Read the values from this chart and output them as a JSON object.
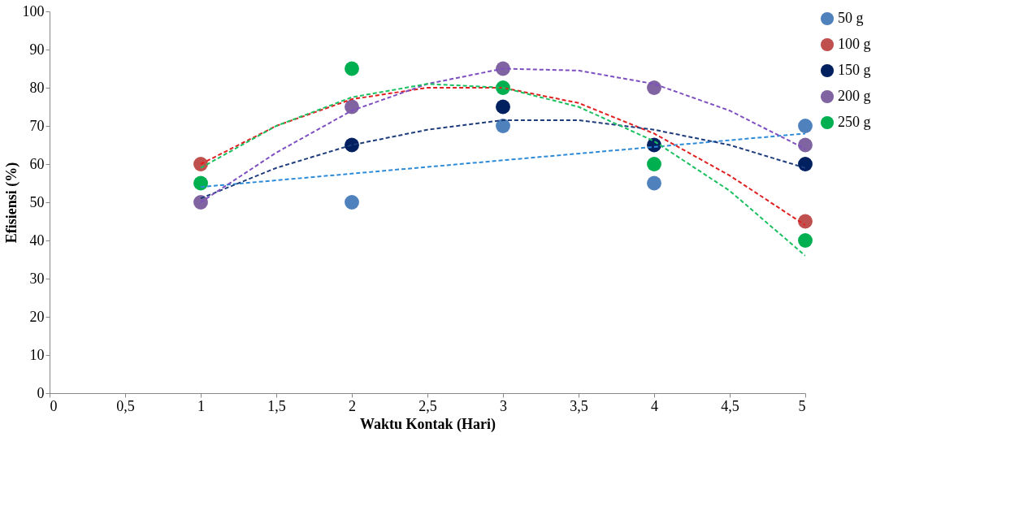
{
  "chart_data": {
    "type": "scatter",
    "xlabel": "Waktu Kontak (Hari)",
    "ylabel": "Efisiensi (%)",
    "marker": "circle",
    "legend": "right",
    "grid": false,
    "xlim": [
      0,
      5
    ],
    "xticks": [
      0,
      {
        "value": 0.5,
        "label": "0,5"
      },
      1,
      {
        "value": 1.5,
        "label": "1,5"
      },
      2,
      {
        "value": 2.5,
        "label": "2,5"
      },
      3,
      {
        "value": 3.5,
        "label": "3,5"
      },
      4,
      {
        "value": 4.5,
        "label": "4,5"
      },
      5
    ],
    "ylim": [
      0,
      100
    ],
    "yticks": [
      0,
      10,
      20,
      30,
      40,
      50,
      60,
      70,
      80,
      90,
      100
    ],
    "x": [
      1,
      2,
      3,
      4,
      5
    ],
    "series": [
      {
        "type": "line",
        "marker": "none",
        "line_style": "dashed",
        "color": "#2e8bd8",
        "x": [
          1,
          5
        ],
        "values": [
          54,
          68
        ]
      },
      {
        "type": "line",
        "marker": "none",
        "line_style": "dashed",
        "color": "#e02020",
        "x": [
          1,
          1.5,
          2,
          2.5,
          3,
          3.5,
          4,
          4.5,
          5
        ],
        "values": [
          60,
          70,
          77,
          80,
          80,
          76,
          68,
          57,
          44
        ]
      },
      {
        "type": "line",
        "marker": "none",
        "line_style": "dashed",
        "color": "#1f3d7a",
        "x": [
          1,
          1.5,
          2,
          2.5,
          3,
          3.5,
          4,
          4.5,
          5
        ],
        "values": [
          51,
          59,
          65,
          69,
          71.5,
          71.5,
          69,
          65,
          59
        ]
      },
      {
        "type": "line",
        "marker": "none",
        "line_style": "dashed",
        "color": "#7d4fc0",
        "x": [
          1,
          1.5,
          2,
          2.5,
          3,
          3.5,
          4,
          4.5,
          5
        ],
        "values": [
          50,
          63,
          74,
          81,
          85,
          84.5,
          81,
          74,
          64
        ]
      },
      {
        "type": "line",
        "marker": "none",
        "line_style": "dashed",
        "color": "#1bc060",
        "x": [
          1,
          1.5,
          2,
          2.5,
          3,
          3.5,
          4,
          4.5,
          5
        ],
        "values": [
          59,
          70,
          77.5,
          81,
          80,
          75,
          66,
          53,
          36
        ]
      },
      {
        "name": "50 g",
        "color": "#4f81bd",
        "values": [
          null,
          50,
          70,
          55,
          70
        ]
      },
      {
        "name": "100 g",
        "color": "#c0504d",
        "values": [
          60,
          null,
          null,
          null,
          45
        ]
      },
      {
        "name": "150 g",
        "color": "#002060",
        "values": [
          null,
          65,
          75,
          65,
          60
        ]
      },
      {
        "name": "200 g",
        "color": "#8064a2",
        "values": [
          50,
          75,
          85,
          80,
          65
        ]
      },
      {
        "name": "250 g",
        "color": "#00b050",
        "values": [
          55,
          85,
          80,
          60,
          40
        ]
      }
    ]
  }
}
